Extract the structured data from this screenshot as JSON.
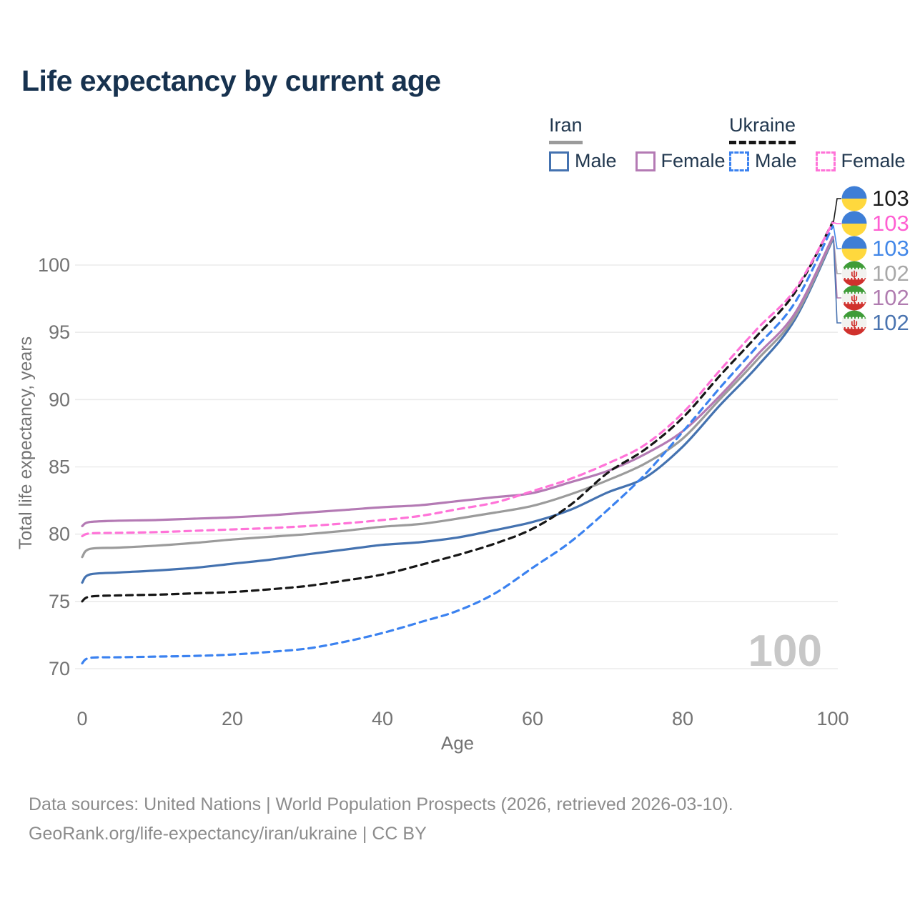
{
  "title": "Life expectancy by current age",
  "legend": {
    "groups": [
      {
        "label": "Iran",
        "dash": false,
        "items": [
          {
            "label": "Male",
            "color": "#4472b0",
            "dash": false
          },
          {
            "label": "Female",
            "color": "#b47ab4",
            "dash": false
          }
        ]
      },
      {
        "label": "Ukraine",
        "dash": true,
        "items": [
          {
            "label": "Male",
            "color": "#3b82f0",
            "dash": true
          },
          {
            "label": "Female",
            "color": "#ff73d8",
            "dash": true
          }
        ]
      }
    ]
  },
  "chart_data": {
    "type": "line",
    "title": "Life expectancy by current age",
    "xlabel": "Age",
    "ylabel": "Total life expectancy, years",
    "xlim": [
      0,
      100
    ],
    "ylim": [
      70,
      100
    ],
    "xticks": [
      0,
      20,
      40,
      60,
      80,
      100
    ],
    "yticks": [
      70,
      75,
      80,
      85,
      90,
      95,
      100
    ],
    "grid": "horizontal",
    "x": [
      0,
      1,
      5,
      10,
      15,
      20,
      25,
      30,
      35,
      40,
      45,
      50,
      55,
      60,
      65,
      70,
      75,
      80,
      85,
      90,
      95,
      100
    ],
    "series": [
      {
        "name": "Iran Male",
        "country": "Iran",
        "sex": "Male",
        "color": "#4472b0",
        "dash": false,
        "values": [
          76.4,
          77.0,
          77.15,
          77.3,
          77.5,
          77.8,
          78.1,
          78.5,
          78.85,
          79.2,
          79.4,
          79.75,
          80.3,
          80.9,
          81.8,
          83.1,
          84.2,
          86.5,
          89.6,
          92.5,
          96.0,
          101.9
        ]
      },
      {
        "name": "Iran Total",
        "country": "Iran",
        "sex": "All",
        "color": "#9b9b9b",
        "dash": false,
        "values": [
          78.3,
          78.9,
          79.0,
          79.15,
          79.35,
          79.6,
          79.8,
          80.0,
          80.25,
          80.55,
          80.75,
          81.15,
          81.6,
          82.1,
          82.95,
          84.0,
          85.25,
          87.1,
          90.05,
          93.0,
          96.2,
          102.0
        ]
      },
      {
        "name": "Iran Female",
        "country": "Iran",
        "sex": "Female",
        "color": "#b47ab4",
        "dash": false,
        "values": [
          80.6,
          80.9,
          81.0,
          81.05,
          81.15,
          81.25,
          81.4,
          81.6,
          81.8,
          82.0,
          82.15,
          82.45,
          82.75,
          83.05,
          83.85,
          84.7,
          85.95,
          87.65,
          90.3,
          93.35,
          96.45,
          102.1
        ]
      },
      {
        "name": "Ukraine Male",
        "country": "Ukraine",
        "sex": "Male",
        "color": "#3b82f0",
        "dash": true,
        "values": [
          70.4,
          70.8,
          70.85,
          70.9,
          70.95,
          71.05,
          71.25,
          71.5,
          72.0,
          72.65,
          73.45,
          74.3,
          75.6,
          77.5,
          79.4,
          81.8,
          84.45,
          87.6,
          90.9,
          94.0,
          97.25,
          102.9
        ]
      },
      {
        "name": "Ukraine Total",
        "country": "Ukraine",
        "sex": "All",
        "color": "#161616",
        "dash": true,
        "values": [
          75.0,
          75.35,
          75.45,
          75.5,
          75.6,
          75.7,
          75.9,
          76.15,
          76.55,
          77.0,
          77.7,
          78.45,
          79.3,
          80.4,
          82.15,
          84.55,
          86.3,
          88.65,
          91.8,
          94.8,
          98.0,
          103.2
        ]
      },
      {
        "name": "Ukraine Female",
        "country": "Ukraine",
        "sex": "Female",
        "color": "#ff73d8",
        "dash": true,
        "values": [
          79.85,
          80.05,
          80.1,
          80.15,
          80.25,
          80.35,
          80.45,
          80.6,
          80.8,
          81.05,
          81.35,
          81.85,
          82.35,
          83.2,
          84.1,
          85.25,
          86.65,
          89.0,
          92.2,
          95.3,
          98.2,
          103.15
        ]
      }
    ]
  },
  "end_labels": [
    {
      "value": "103",
      "color": "#1a1a1a",
      "flag": "ukraine-flag",
      "series": "Ukraine Total"
    },
    {
      "value": "103",
      "color": "#ff5fd2",
      "flag": "ukraine-flag",
      "series": "Ukraine Female"
    },
    {
      "value": "103",
      "color": "#4287e8",
      "flag": "ukraine-flag",
      "series": "Ukraine Male"
    },
    {
      "value": "102",
      "color": "#a8a8a8",
      "flag": "iran-flag",
      "series": "Iran Total"
    },
    {
      "value": "102",
      "color": "#b07cb0",
      "flag": "iran-flag",
      "series": "Iran Female"
    },
    {
      "value": "102",
      "color": "#4a74b0",
      "flag": "iran-flag",
      "series": "Iran Male"
    }
  ],
  "watermark": "100",
  "footer": {
    "line1": "Data sources: United Nations | World Population Prospects (2026, retrieved 2026-03-10).",
    "line2": "GeoRank.org/life-expectancy/iran/ukraine | CC BY"
  }
}
